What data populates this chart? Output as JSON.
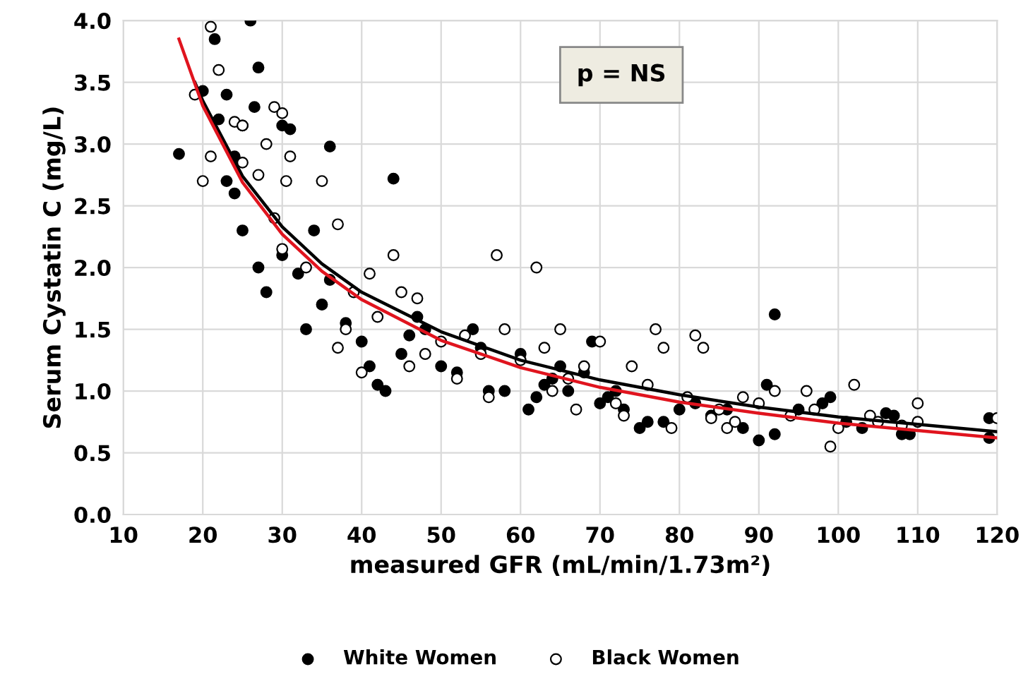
{
  "chart_data": {
    "type": "scatter",
    "xlabel": "measured GFR (mL/min/1.73m²)",
    "ylabel": "Serum Cystatin C (mg/L)",
    "annotations": [
      "p = NS"
    ],
    "xlim": [
      10,
      120
    ],
    "ylim": [
      0,
      4
    ],
    "xticks": [
      10,
      20,
      30,
      40,
      50,
      60,
      70,
      80,
      90,
      100,
      110,
      120
    ],
    "yticks": [
      {
        "value": 0,
        "label": "0.0"
      },
      {
        "value": 0.5,
        "label": "0.5"
      },
      {
        "value": 1,
        "label": "1.0"
      },
      {
        "value": 1.5,
        "label": "1.5"
      },
      {
        "value": 2,
        "label": "2.0"
      },
      {
        "value": 2.5,
        "label": "2.5"
      },
      {
        "value": 3,
        "label": "3.0"
      },
      {
        "value": 3.5,
        "label": "3.5"
      },
      {
        "value": 4,
        "label": "4.0"
      }
    ],
    "grid": true,
    "legend": "bottom",
    "series": [
      {
        "name": "White Women",
        "marker": "circle",
        "color": "#000000",
        "x": [
          17,
          20,
          21.5,
          23,
          24,
          25,
          26,
          27,
          26.5,
          30,
          31,
          36,
          44,
          22,
          23,
          24,
          25,
          27,
          28,
          30,
          33,
          35,
          38,
          40,
          41,
          42,
          43,
          45,
          47,
          48,
          50,
          52,
          54,
          56,
          58,
          60,
          61,
          62,
          63,
          65,
          66,
          68,
          69,
          70,
          71,
          73,
          75,
          76,
          78,
          80,
          82,
          84,
          86,
          88,
          90,
          91,
          92,
          92,
          95,
          98,
          99,
          101,
          103,
          106,
          107,
          108,
          109,
          119,
          119,
          46,
          55,
          64,
          72,
          36,
          34,
          32
        ],
        "values": [
          2.92,
          3.43,
          3.85,
          3.4,
          2.9,
          3.15,
          4.0,
          3.62,
          3.3,
          3.15,
          3.12,
          2.98,
          2.72,
          3.2,
          2.7,
          2.6,
          2.3,
          2.0,
          1.8,
          2.1,
          1.5,
          1.7,
          1.55,
          1.4,
          1.2,
          1.05,
          1.0,
          1.3,
          1.6,
          1.5,
          1.2,
          1.15,
          1.5,
          1.0,
          1.0,
          1.3,
          0.85,
          0.95,
          1.05,
          1.2,
          1.0,
          1.15,
          1.4,
          0.9,
          0.95,
          0.85,
          0.7,
          0.75,
          0.75,
          0.85,
          0.9,
          0.8,
          0.85,
          0.7,
          0.6,
          1.05,
          1.62,
          0.65,
          0.85,
          0.9,
          0.95,
          0.75,
          0.7,
          0.82,
          0.8,
          0.65,
          0.65,
          0.78,
          0.62,
          1.45,
          1.35,
          1.1,
          1.0,
          1.9,
          2.3,
          1.95
        ]
      },
      {
        "name": "Black Women",
        "marker": "circle",
        "color": "#ffffff",
        "x": [
          19,
          20,
          21,
          22,
          21,
          24,
          25,
          25,
          27,
          28,
          29,
          30,
          30.5,
          31,
          29,
          30,
          33,
          35,
          37,
          37,
          39,
          41,
          42,
          44,
          45,
          47,
          48,
          50,
          52,
          55,
          57,
          58,
          60,
          62,
          63,
          65,
          66,
          68,
          70,
          72,
          74,
          76,
          77,
          78,
          79,
          81,
          82,
          83,
          85,
          86,
          87,
          88,
          90,
          92,
          94,
          96,
          97,
          99,
          102,
          104,
          105,
          108,
          110,
          110,
          120,
          38,
          40,
          46,
          53,
          56,
          64,
          67,
          73,
          84,
          100
        ],
        "values": [
          3.4,
          2.7,
          3.95,
          3.6,
          2.9,
          3.18,
          3.15,
          2.85,
          2.75,
          3.0,
          3.3,
          3.25,
          2.7,
          2.9,
          2.4,
          2.15,
          2.0,
          2.7,
          2.35,
          1.35,
          1.8,
          1.95,
          1.6,
          2.1,
          1.8,
          1.75,
          1.3,
          1.4,
          1.1,
          1.3,
          2.1,
          1.5,
          1.25,
          2.0,
          1.35,
          1.5,
          1.1,
          1.2,
          1.4,
          0.9,
          1.2,
          1.05,
          1.5,
          1.35,
          0.7,
          0.95,
          1.45,
          1.35,
          0.85,
          0.7,
          0.75,
          0.95,
          0.9,
          1.0,
          0.8,
          1.0,
          0.85,
          0.55,
          1.05,
          0.8,
          0.75,
          0.72,
          0.9,
          0.75,
          0.78,
          1.5,
          1.15,
          1.2,
          1.45,
          0.95,
          1.0,
          0.85,
          0.8,
          0.78,
          0.7
        ]
      },
      {
        "type": "line",
        "color": "#000000",
        "x": [
          19,
          20,
          25,
          30,
          35,
          40,
          50,
          60,
          70,
          80,
          90,
          100,
          110,
          120
        ],
        "values": [
          3.5,
          3.35,
          2.74,
          2.33,
          2.03,
          1.8,
          1.48,
          1.25,
          1.09,
          0.97,
          0.87,
          0.79,
          0.73,
          0.67
        ]
      },
      {
        "type": "line",
        "color": "#e0141e",
        "x": [
          17,
          20,
          25,
          30,
          35,
          40,
          50,
          60,
          70,
          80,
          90,
          100,
          110,
          120
        ],
        "values": [
          3.85,
          3.31,
          2.69,
          2.27,
          1.97,
          1.74,
          1.41,
          1.19,
          1.03,
          0.91,
          0.82,
          0.74,
          0.68,
          0.62
        ]
      }
    ]
  }
}
